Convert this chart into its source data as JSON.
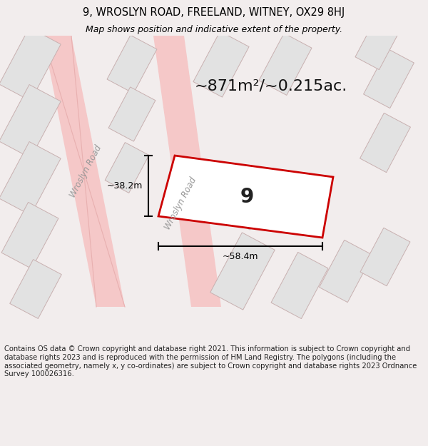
{
  "title_line1": "9, WROSLYN ROAD, FREELAND, WITNEY, OX29 8HJ",
  "title_line2": "Map shows position and indicative extent of the property.",
  "area_label": "~871m²/~0.215ac.",
  "plot_number": "9",
  "dim_width": "~58.4m",
  "dim_height": "~38.2m",
  "road_label1": "Wroslyn Road",
  "road_label2": "Wroslyn Road",
  "footer_text": "Contains OS data © Crown copyright and database right 2021. This information is subject to Crown copyright and database rights 2023 and is reproduced with the permission of HM Land Registry. The polygons (including the associated geometry, namely x, y co-ordinates) are subject to Crown copyright and database rights 2023 Ordnance Survey 100026316.",
  "bg_color": "#f2eded",
  "map_bg": "#ffffff",
  "road_color": "#f5c8c8",
  "road_outline": "#e8b0b0",
  "building_fill": "#e2e2e2",
  "building_edge": "#c8b0b0",
  "highlight_fill": "#ffffff",
  "highlight_edge": "#cc0000",
  "dim_line_color": "#000000",
  "title_color": "#000000",
  "footer_color": "#222222"
}
